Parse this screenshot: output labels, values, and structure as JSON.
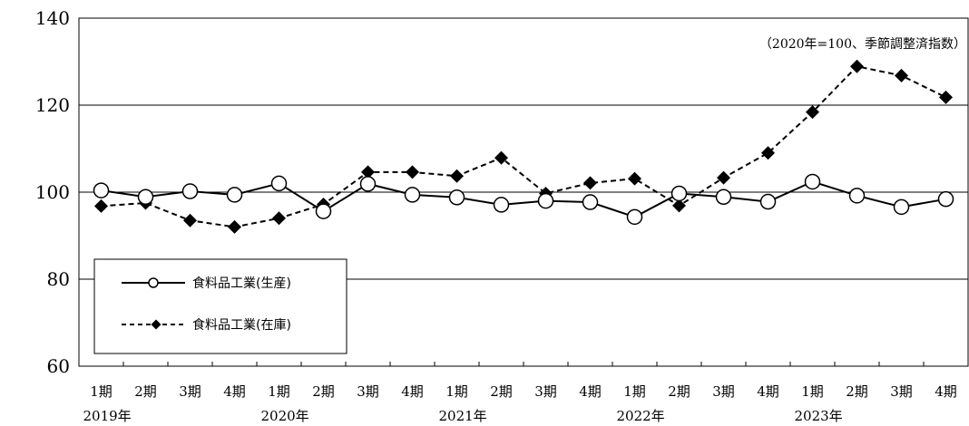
{
  "chart_data": {
    "type": "line",
    "note": "（2020年=100、季節調整済指数）",
    "categories": [
      "1期",
      "2期",
      "3期",
      "4期",
      "1期",
      "2期",
      "3期",
      "4期",
      "1期",
      "2期",
      "3期",
      "4期",
      "1期",
      "2期",
      "3期",
      "4期",
      "1期",
      "2期",
      "3期",
      "4期"
    ],
    "years": [
      {
        "label": "2019年",
        "start_index": 0
      },
      {
        "label": "2020年",
        "start_index": 4
      },
      {
        "label": "2021年",
        "start_index": 8
      },
      {
        "label": "2022年",
        "start_index": 12
      },
      {
        "label": "2023年",
        "start_index": 16
      }
    ],
    "ylim": [
      60,
      140
    ],
    "yticks": [
      60,
      80,
      100,
      120,
      140
    ],
    "grid": "horizontal",
    "legend_position": "bottom-left",
    "series": [
      {
        "name": "食料品工業(生産)",
        "style": "solid",
        "marker": "open-circle",
        "color": "#000000",
        "values": [
          100.4,
          98.9,
          100.2,
          99.4,
          102.0,
          95.6,
          101.9,
          99.4,
          98.8,
          97.1,
          98.0,
          97.7,
          94.3,
          99.7,
          98.9,
          97.8,
          102.4,
          99.2,
          96.6,
          98.4
        ]
      },
      {
        "name": "食料品工業(在庫)",
        "style": "dashed",
        "marker": "filled-diamond",
        "color": "#000000",
        "values": [
          96.8,
          97.5,
          93.5,
          92.0,
          94.0,
          97.2,
          104.6,
          104.6,
          103.7,
          107.9,
          99.7,
          102.1,
          103.1,
          96.9,
          103.3,
          109.0,
          118.4,
          128.9,
          126.8,
          121.8
        ]
      }
    ]
  }
}
